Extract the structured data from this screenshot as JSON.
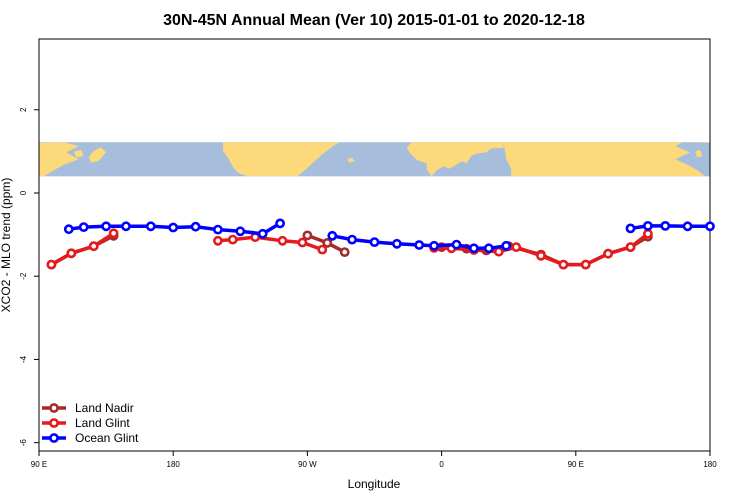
{
  "chart_data": {
    "type": "line",
    "title": "30N-45N Annual Mean (Ver 10)   2015-01-01 to 2020-12-18",
    "xlabel": "Longitude",
    "ylabel": "XCO2 - MLO trend (ppm)",
    "xlim": [
      -90,
      180
    ],
    "ylim": [
      -6.2,
      3.7
    ],
    "x_ticks": [
      {
        "value": -90,
        "label": "90 E"
      },
      {
        "value": -36,
        "label": "180"
      },
      {
        "value": 18,
        "label": "90 W"
      },
      {
        "value": 72,
        "label": "0"
      },
      {
        "value": 126,
        "label": "90 E"
      },
      {
        "value": 180,
        "label": "180"
      }
    ],
    "y_ticks": [
      {
        "value": -6,
        "label": "-6"
      },
      {
        "value": -4,
        "label": "-4"
      },
      {
        "value": -2,
        "label": "-2"
      },
      {
        "value": 0,
        "label": "0"
      },
      {
        "value": 2,
        "label": "2"
      }
    ],
    "map_band": {
      "ymin": 0.4,
      "ymax": 1.22,
      "ocean_color": "#a6bddb",
      "land_color": "#fcd97a"
    },
    "grid": false,
    "legend_position": "bottom-left",
    "series": [
      {
        "name": "Land Nadir",
        "color": "#a52a2a",
        "segments": [
          [
            [
              -85,
              -1.72
            ],
            [
              -77,
              -1.45
            ],
            [
              -68,
              -1.28
            ],
            [
              -60,
              -1.03
            ]
          ],
          [
            [
              18,
              -1.02
            ],
            [
              26,
              -1.2
            ],
            [
              33,
              -1.42
            ]
          ],
          [
            [
              72,
              -1.3
            ],
            [
              82,
              -1.34
            ],
            [
              90,
              -1.38
            ],
            [
              99,
              -1.28
            ],
            [
              112,
              -1.48
            ],
            [
              121,
              -1.72
            ],
            [
              130,
              -1.72
            ],
            [
              139,
              -1.46
            ],
            [
              148,
              -1.3
            ],
            [
              155,
              -1.05
            ]
          ]
        ]
      },
      {
        "name": "Land Glint",
        "color": "#e41a1c",
        "segments": [
          [
            [
              -85,
              -1.72
            ],
            [
              -77,
              -1.45
            ],
            [
              -68,
              -1.28
            ],
            [
              -60,
              -0.97
            ]
          ],
          [
            [
              -18,
              -1.15
            ],
            [
              -12,
              -1.12
            ],
            [
              -3,
              -1.06
            ],
            [
              8,
              -1.15
            ],
            [
              16,
              -1.19
            ],
            [
              24,
              -1.36
            ]
          ],
          [
            [
              69,
              -1.32
            ],
            [
              76,
              -1.33
            ],
            [
              85,
              -1.37
            ],
            [
              95,
              -1.41
            ],
            [
              102,
              -1.3
            ],
            [
              112,
              -1.51
            ],
            [
              121,
              -1.72
            ],
            [
              130,
              -1.72
            ],
            [
              139,
              -1.46
            ],
            [
              148,
              -1.3
            ],
            [
              155,
              -0.98
            ]
          ]
        ]
      },
      {
        "name": "Ocean Glint",
        "color": "#0000ff",
        "segments": [
          [
            [
              -78,
              -0.87
            ],
            [
              -72,
              -0.82
            ],
            [
              -63,
              -0.8
            ],
            [
              -55,
              -0.8
            ],
            [
              -45,
              -0.8
            ],
            [
              -36,
              -0.83
            ],
            [
              -27,
              -0.81
            ],
            [
              -18,
              -0.88
            ],
            [
              -9,
              -0.92
            ],
            [
              0,
              -0.98
            ],
            [
              7,
              -0.73
            ]
          ],
          [
            [
              28,
              -1.03
            ],
            [
              36,
              -1.12
            ],
            [
              45,
              -1.18
            ],
            [
              54,
              -1.22
            ],
            [
              63,
              -1.25
            ],
            [
              69,
              -1.27
            ],
            [
              78,
              -1.24
            ],
            [
              85,
              -1.33
            ],
            [
              91,
              -1.33
            ],
            [
              98,
              -1.27
            ]
          ],
          [
            [
              148,
              -0.85
            ],
            [
              155,
              -0.79
            ],
            [
              162,
              -0.79
            ],
            [
              171,
              -0.8
            ],
            [
              180,
              -0.8
            ]
          ]
        ]
      }
    ]
  }
}
